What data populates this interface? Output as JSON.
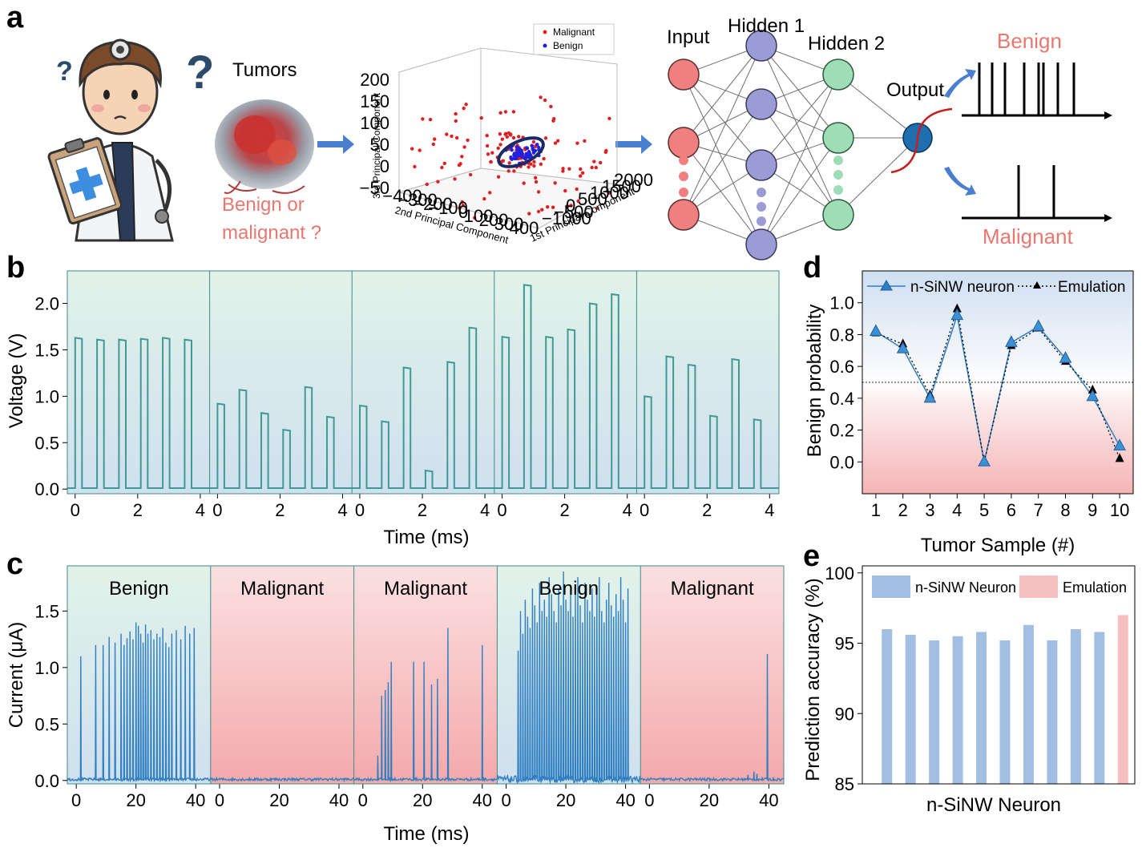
{
  "panel_labels": {
    "a": "a",
    "b": "b",
    "c": "c",
    "d": "d",
    "e": "e"
  },
  "panel_a": {
    "tumors_label": "Tumors",
    "question_line1": "Benign or",
    "question_line2": "malignant ?",
    "pca": {
      "legend": [
        "Malignant",
        "Benign"
      ],
      "xlabel": "1st Principal Component",
      "ylabel": "2nd Principal Component",
      "zlabel": "3rd Principal Component",
      "x_ticks": [
        "−1000",
        "−500",
        "0",
        "500",
        "1000",
        "1500",
        "2000"
      ],
      "y_ticks": [
        "−400",
        "−300",
        "−200",
        "−100",
        "0",
        "100",
        "200",
        "300",
        "400"
      ],
      "z_ticks": [
        "−50",
        "0",
        "50",
        "100",
        "150",
        "200"
      ]
    },
    "network": {
      "input_label": "Input",
      "hidden1_label": "Hidden 1",
      "hidden2_label": "Hidden 2",
      "output_label": "Output",
      "benign_label": "Benign",
      "malignant_label": "Malignant"
    },
    "colors": {
      "input": "#f08080",
      "hidden1": "#9b9bd6",
      "hidden2": "#9fdcb8",
      "output": "#1f6fb0",
      "accent": "#e8786f",
      "arrow": "#4a7fd0"
    }
  },
  "chart_data": [
    {
      "id": "b",
      "type": "line",
      "xlabel": "Time (ms)",
      "ylabel": "Voltage (V)",
      "ylim": [
        -0.05,
        2.35
      ],
      "y_ticks": [
        0.0,
        0.5,
        1.0,
        1.5,
        2.0
      ],
      "y_tick_labels": [
        "0.0",
        "0.5",
        "1.0",
        "1.5",
        "2.0"
      ],
      "x_ticks": [
        0,
        2,
        4
      ],
      "xlim": [
        -0.25,
        4.3
      ],
      "pulse_width_ms": 0.22,
      "segments": [
        {
          "pulse_starts": [
            0,
            0.7,
            1.4,
            2.1,
            2.8,
            3.5
          ],
          "amplitudes": [
            1.63,
            1.61,
            1.61,
            1.62,
            1.63,
            1.61
          ]
        },
        {
          "pulse_starts": [
            0,
            0.7,
            1.4,
            2.1,
            2.8,
            3.5
          ],
          "amplitudes": [
            0.92,
            1.07,
            0.82,
            0.64,
            1.1,
            0.78
          ]
        },
        {
          "pulse_starts": [
            0,
            0.7,
            1.4,
            2.1,
            2.8,
            3.5
          ],
          "amplitudes": [
            0.9,
            0.73,
            1.31,
            0.2,
            1.37,
            1.74
          ]
        },
        {
          "pulse_starts": [
            0,
            0.7,
            1.4,
            2.1,
            2.8,
            3.5
          ],
          "amplitudes": [
            1.64,
            2.2,
            1.64,
            1.72,
            2.0,
            2.1
          ]
        },
        {
          "pulse_starts": [
            0,
            0.7,
            1.4,
            2.1,
            2.8,
            3.5
          ],
          "amplitudes": [
            1.0,
            1.43,
            1.34,
            0.79,
            1.4,
            0.75
          ]
        }
      ]
    },
    {
      "id": "c",
      "type": "line",
      "xlabel": "Time (ms)",
      "ylabel": "Current (μA)",
      "ylim": [
        -0.03,
        1.9
      ],
      "y_ticks": [
        0.0,
        0.5,
        1.0,
        1.5
      ],
      "y_tick_labels": [
        "0.0",
        "0.5",
        "1.0",
        "1.5"
      ],
      "x_ticks": [
        0,
        20,
        40
      ],
      "xlim": [
        -3,
        45
      ],
      "segment_labels": [
        "Benign",
        "Malignant",
        "Malignant",
        "Benign",
        "Malignant"
      ],
      "segments": [
        {
          "class": "benign",
          "spike_times": [
            1.5,
            6.5,
            9,
            11,
            13,
            15,
            16,
            17,
            18,
            19,
            20,
            20.8,
            21.6,
            22.4,
            23.2,
            24,
            25,
            26,
            27,
            28,
            29,
            30,
            31,
            32,
            33.5,
            35,
            36.5,
            38,
            39.5
          ],
          "spike_heights": [
            1.1,
            1.2,
            1.2,
            1.27,
            1.22,
            1.3,
            1.2,
            1.26,
            1.32,
            1.25,
            1.4,
            1.37,
            1.3,
            1.22,
            1.38,
            1.3,
            1.33,
            1.25,
            1.3,
            1.27,
            1.35,
            1.22,
            1.18,
            1.3,
            1.33,
            1.25,
            1.37,
            1.3,
            1.35
          ]
        },
        {
          "class": "malignant",
          "spike_times": [],
          "spike_heights": []
        },
        {
          "class": "malignant",
          "spike_times": [
            5,
            6.3,
            7.5,
            8.5,
            9.5,
            17,
            20.5,
            23,
            25,
            28.5,
            40
          ],
          "spike_heights": [
            0.22,
            0.75,
            0.8,
            0.87,
            1.05,
            1.05,
            1.05,
            0.85,
            0.9,
            1.35,
            1.2
          ]
        },
        {
          "class": "benign",
          "spike_times": [
            4,
            4.8,
            5.6,
            6.4,
            7.2,
            8,
            8.8,
            9.6,
            10.4,
            11.2,
            12,
            12.8,
            13.6,
            14.4,
            15.2,
            16,
            16.8,
            17.6,
            18.4,
            19.2,
            20,
            20.8,
            21.6,
            22.4,
            23.2,
            24,
            24.8,
            25.6,
            26.4,
            27.2,
            28,
            28.8,
            29.6,
            30.4,
            31.2,
            32,
            32.8,
            33.6,
            34.4,
            35.2,
            36,
            36.8,
            37.6,
            38.4,
            39.2,
            40,
            40.8
          ],
          "spike_heights": [
            1.15,
            1.5,
            1.3,
            1.6,
            1.45,
            1.35,
            1.7,
            1.55,
            1.4,
            1.75,
            1.5,
            1.6,
            1.45,
            1.8,
            1.65,
            1.5,
            1.4,
            1.7,
            1.55,
            1.85,
            1.6,
            1.5,
            1.7,
            1.45,
            1.65,
            1.8,
            1.55,
            1.4,
            1.75,
            1.6,
            1.5,
            1.7,
            1.45,
            1.65,
            1.8,
            1.5,
            1.4,
            1.6,
            1.75,
            1.55,
            1.45,
            1.65,
            1.5,
            1.8,
            1.6,
            1.4,
            1.7
          ]
        },
        {
          "class": "malignant",
          "spike_times": [
            33,
            35,
            36,
            39.5
          ],
          "spike_heights": [
            0.05,
            0.08,
            0.06,
            1.12
          ]
        }
      ]
    },
    {
      "id": "d",
      "type": "line",
      "xlabel": "Tumor Sample (#)",
      "ylabel": "Benign probability",
      "x": [
        1,
        2,
        3,
        4,
        5,
        6,
        7,
        8,
        9,
        10
      ],
      "xlim": [
        0.5,
        10.5
      ],
      "ylim": [
        -0.2,
        1.2
      ],
      "y_ticks": [
        0.0,
        0.2,
        0.4,
        0.6,
        0.8,
        1.0
      ],
      "y_tick_labels": [
        "0.0",
        "0.2",
        "0.4",
        "0.6",
        "0.8",
        "1.0"
      ],
      "threshold": 0.5,
      "series": [
        {
          "name": "n-SiNW neuron",
          "values": [
            0.82,
            0.71,
            0.4,
            0.92,
            0.0,
            0.75,
            0.85,
            0.65,
            0.41,
            0.1
          ],
          "color": "#2f7fc1"
        },
        {
          "name": "Emulation",
          "values": [
            0.81,
            0.74,
            0.42,
            0.96,
            0.0,
            0.73,
            0.84,
            0.63,
            0.45,
            0.02
          ],
          "color": "#000000"
        }
      ]
    },
    {
      "id": "e",
      "type": "bar",
      "xlabel": "n-SiNW Neuron",
      "ylabel": "Prediction accuracy (%)",
      "ylim": [
        85,
        100.5
      ],
      "y_ticks": [
        85,
        90,
        95,
        100
      ],
      "y_tick_labels": [
        "85",
        "90",
        "95",
        "100"
      ],
      "series": [
        {
          "name": "n-SiNW Neuron",
          "values": [
            96.0,
            95.6,
            95.2,
            95.5,
            95.8,
            95.2,
            96.3,
            95.2,
            96.0,
            95.8
          ],
          "color": "#a2bfe2"
        },
        {
          "name": "Emulation",
          "values": [
            97.0
          ],
          "color": "#f6c0c0"
        }
      ]
    }
  ]
}
